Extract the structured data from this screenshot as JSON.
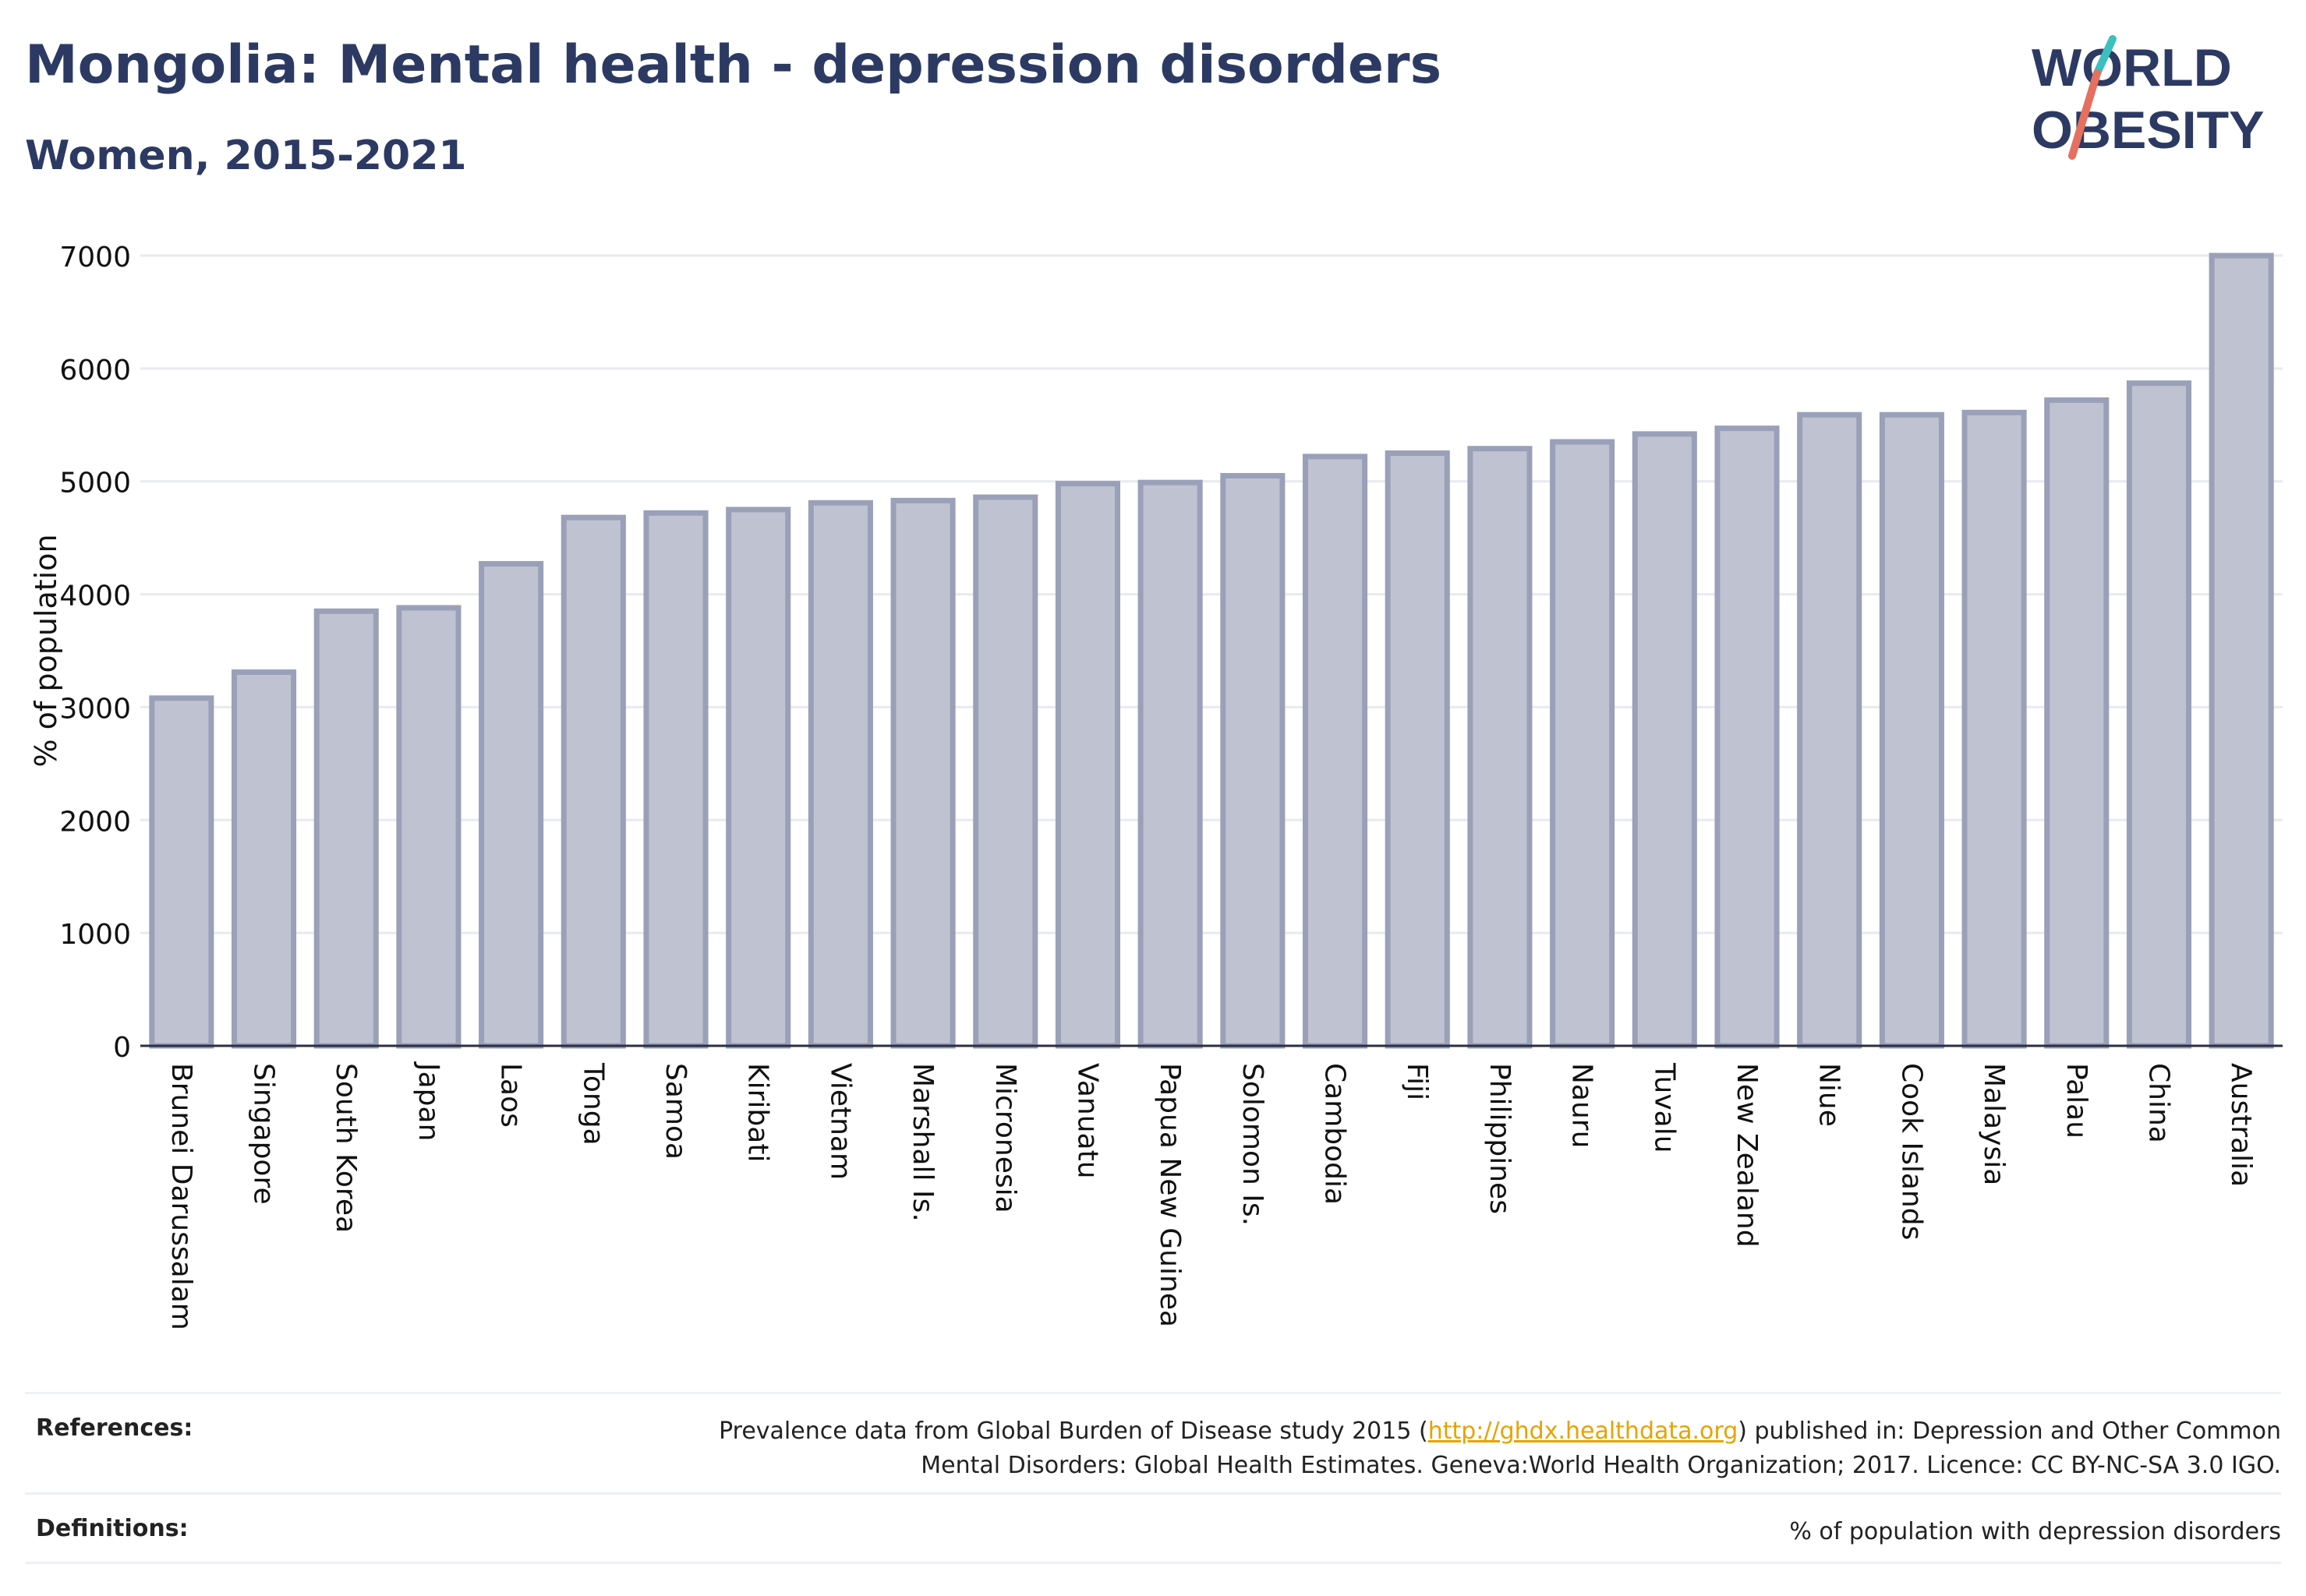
{
  "header": {
    "title": "Mongolia: Mental health - depression disorders",
    "subtitle": "Women, 2015-2021"
  },
  "logo": {
    "line1": "WORLD",
    "line2": "OBESITY",
    "colors": [
      "#2c3a63",
      "#e5705f",
      "#3bbfbf"
    ]
  },
  "chart_data": {
    "type": "bar",
    "ylabel": "% of population",
    "xlabel": "",
    "ylim": [
      0,
      7000
    ],
    "yticks": [
      0,
      1000,
      2000,
      3000,
      4000,
      5000,
      6000,
      7000
    ],
    "grid": true,
    "bar_color": "#bfc3d1",
    "bar_edge_color": "#9aa0b8",
    "categories": [
      "Brunei Darussalam",
      "Singapore",
      "South Korea",
      "Japan",
      "Laos",
      "Tonga",
      "Samoa",
      "Kiribati",
      "Vietnam",
      "Marshall Is.",
      "Micronesia",
      "Vanuatu",
      "Papua New Guinea",
      "Solomon Is.",
      "Cambodia",
      "Fiji",
      "Philippines",
      "Nauru",
      "Tuvalu",
      "New Zealand",
      "Niue",
      "Cook Islands",
      "Malaysia",
      "Palau",
      "China",
      "Australia"
    ],
    "values": [
      3080,
      3310,
      3850,
      3880,
      4270,
      4680,
      4720,
      4750,
      4810,
      4830,
      4860,
      4980,
      4990,
      5050,
      5220,
      5250,
      5290,
      5350,
      5420,
      5470,
      5590,
      5590,
      5610,
      5720,
      5870,
      7000
    ]
  },
  "footer": {
    "references_label": "References:",
    "references_pre": "Prevalence data from Global Burden of Disease study 2015 (",
    "references_link": "http://ghdx.healthdata.org",
    "references_post": ") published in: Depression and Other Common",
    "references_line2": "Mental Disorders: Global Health Estimates. Geneva:World Health Organization; 2017. Licence: CC BY-NC-SA 3.0 IGO.",
    "definitions_label": "Definitions:",
    "definitions_text": "% of population with depression disorders"
  }
}
